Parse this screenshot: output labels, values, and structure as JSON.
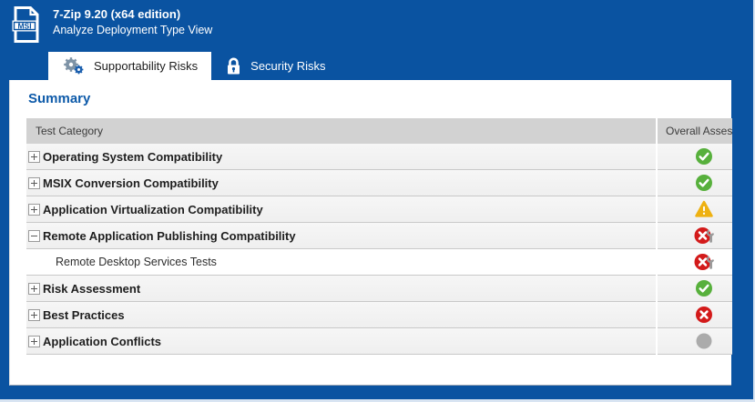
{
  "window": {
    "app_icon": "msi-file-icon",
    "app_icon_label": "MSI",
    "title": "7-Zip 9.20 (x64 edition)",
    "subtitle": "Analyze Deployment Type View"
  },
  "colors": {
    "header_blue": "#0a53a1",
    "summary_blue": "#0d5aa9",
    "pass_green": "#57b03c",
    "warn_amber": "#eeb111",
    "fail_red": "#d31a1a",
    "neutral_gray": "#ababab"
  },
  "tabs": [
    {
      "label": "Supportability Risks",
      "icon": "gears-icon",
      "active": true
    },
    {
      "label": "Security Risks",
      "icon": "lock-icon",
      "active": false
    }
  ],
  "summary": {
    "heading": "Summary"
  },
  "table": {
    "columns": [
      {
        "label": "Test Category"
      },
      {
        "label": "Overall Assessment"
      }
    ],
    "rows": [
      {
        "label": "Operating System Compatibility",
        "expander": "plus",
        "level": 0,
        "status": "pass",
        "status_icon": "green-check-icon"
      },
      {
        "label": "MSIX Conversion Compatibility",
        "expander": "plus",
        "level": 0,
        "status": "pass",
        "status_icon": "green-check-icon"
      },
      {
        "label": "Application Virtualization Compatibility",
        "expander": "plus",
        "level": 0,
        "status": "warning",
        "status_icon": "amber-warning-icon"
      },
      {
        "label": "Remote Application Publishing Compatibility",
        "expander": "minus",
        "level": 0,
        "status": "fail-fixable",
        "status_icon": "red-x-wrench-icon"
      },
      {
        "label": "Remote Desktop Services Tests",
        "expander": "none",
        "level": 1,
        "status": "fail-fixable",
        "status_icon": "red-x-wrench-icon"
      },
      {
        "label": "Risk Assessment",
        "expander": "plus",
        "level": 0,
        "status": "pass",
        "status_icon": "green-check-icon"
      },
      {
        "label": "Best Practices",
        "expander": "plus",
        "level": 0,
        "status": "fail",
        "status_icon": "red-x-icon"
      },
      {
        "label": "Application Conflicts",
        "expander": "plus",
        "level": 0,
        "status": "not-run",
        "status_icon": "gray-circle-icon"
      }
    ]
  }
}
